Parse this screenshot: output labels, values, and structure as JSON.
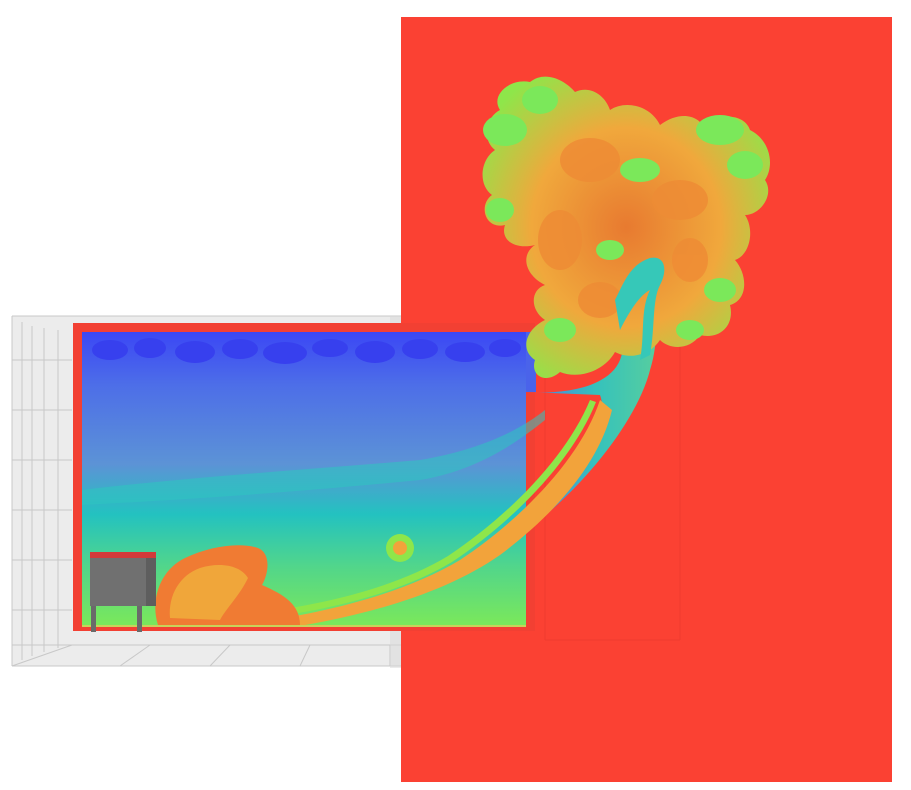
{
  "scene": {
    "background_color": "#ffffff",
    "outer_domain_color": "#fb4133",
    "room_wall_color": "#f24033",
    "grid_line_color": "#c8c8c8",
    "grid_fill_color": "#dcdcdc",
    "object_body_color": "#707070",
    "object_top_color": "#d33a3a",
    "floor_line_color": "#c8d25a"
  },
  "colormap": {
    "cold": "#3b47f5",
    "cool": "#5d86e6",
    "mid": "#23c2c0",
    "warm": "#7be85a",
    "hot": "#f5a53a",
    "hottest": "#f54a2e"
  }
}
